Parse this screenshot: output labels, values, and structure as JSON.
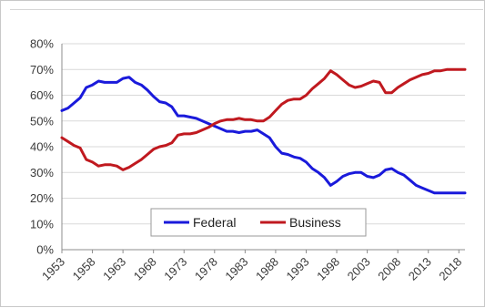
{
  "chart_data": {
    "type": "line",
    "title": "",
    "xlabel": "",
    "ylabel": "",
    "xlim": [
      1953,
      2019
    ],
    "ylim": [
      0,
      80
    ],
    "x_ticks": [
      "1953",
      "1958",
      "1963",
      "1968",
      "1973",
      "1978",
      "1983",
      "1988",
      "1993",
      "1998",
      "2003",
      "2008",
      "2013",
      "2018"
    ],
    "y_ticks": [
      "0%",
      "10%",
      "20%",
      "30%",
      "40%",
      "50%",
      "60%",
      "70%",
      "80%"
    ],
    "grid": "horizontal",
    "legend_position": "bottom-center",
    "series": [
      {
        "name": "Federal",
        "color": "#1a1adb",
        "x": [
          1953,
          1954,
          1955,
          1956,
          1957,
          1958,
          1959,
          1960,
          1961,
          1962,
          1963,
          1964,
          1965,
          1966,
          1967,
          1968,
          1969,
          1970,
          1971,
          1972,
          1973,
          1974,
          1975,
          1976,
          1977,
          1978,
          1979,
          1980,
          1981,
          1982,
          1983,
          1984,
          1985,
          1986,
          1987,
          1988,
          1989,
          1990,
          1991,
          1992,
          1993,
          1994,
          1995,
          1996,
          1997,
          1998,
          1999,
          2000,
          2001,
          2002,
          2003,
          2004,
          2005,
          2006,
          2007,
          2008,
          2009,
          2010,
          2011,
          2012,
          2013,
          2014,
          2015,
          2016,
          2017,
          2018,
          2019
        ],
        "values": [
          54,
          55,
          57,
          59,
          63,
          64,
          65.5,
          65,
          65,
          65,
          66.5,
          67,
          65,
          64,
          62,
          59.5,
          57.5,
          57,
          55.5,
          52,
          52,
          51.5,
          51,
          50,
          49,
          48,
          47,
          46,
          46,
          45.5,
          46,
          46,
          46.5,
          45,
          43.5,
          40,
          37.5,
          37,
          36,
          35.5,
          34,
          31.5,
          30,
          28,
          25,
          26.5,
          28.5,
          29.5,
          30,
          30,
          28.5,
          28,
          29,
          31,
          31.5,
          30,
          29,
          27,
          25,
          24,
          23,
          22,
          22,
          22,
          22,
          22,
          22
        ]
      },
      {
        "name": "Business",
        "color": "#c0191f",
        "x": [
          1953,
          1954,
          1955,
          1956,
          1957,
          1958,
          1959,
          1960,
          1961,
          1962,
          1963,
          1964,
          1965,
          1966,
          1967,
          1968,
          1969,
          1970,
          1971,
          1972,
          1973,
          1974,
          1975,
          1976,
          1977,
          1978,
          1979,
          1980,
          1981,
          1982,
          1983,
          1984,
          1985,
          1986,
          1987,
          1988,
          1989,
          1990,
          1991,
          1992,
          1993,
          1994,
          1995,
          1996,
          1997,
          1998,
          1999,
          2000,
          2001,
          2002,
          2003,
          2004,
          2005,
          2006,
          2007,
          2008,
          2009,
          2010,
          2011,
          2012,
          2013,
          2014,
          2015,
          2016,
          2017,
          2018,
          2019
        ],
        "values": [
          43.5,
          42,
          40.5,
          39.5,
          35,
          34,
          32.5,
          33,
          33,
          32.5,
          31,
          32,
          33.5,
          35,
          37,
          39,
          40,
          40.5,
          41.5,
          44.5,
          45,
          45,
          45.5,
          46.5,
          47.5,
          49,
          50,
          50.5,
          50.5,
          51,
          50.5,
          50.5,
          50,
          50,
          51.5,
          54,
          56.5,
          58,
          58.5,
          58.5,
          60,
          62.5,
          64.5,
          66.5,
          69.5,
          68,
          66,
          64,
          63,
          63.5,
          64.5,
          65.5,
          65,
          61,
          61,
          63,
          64.5,
          66,
          67,
          68,
          68.5,
          69.5,
          69.5,
          70,
          70,
          70,
          70
        ]
      }
    ]
  }
}
